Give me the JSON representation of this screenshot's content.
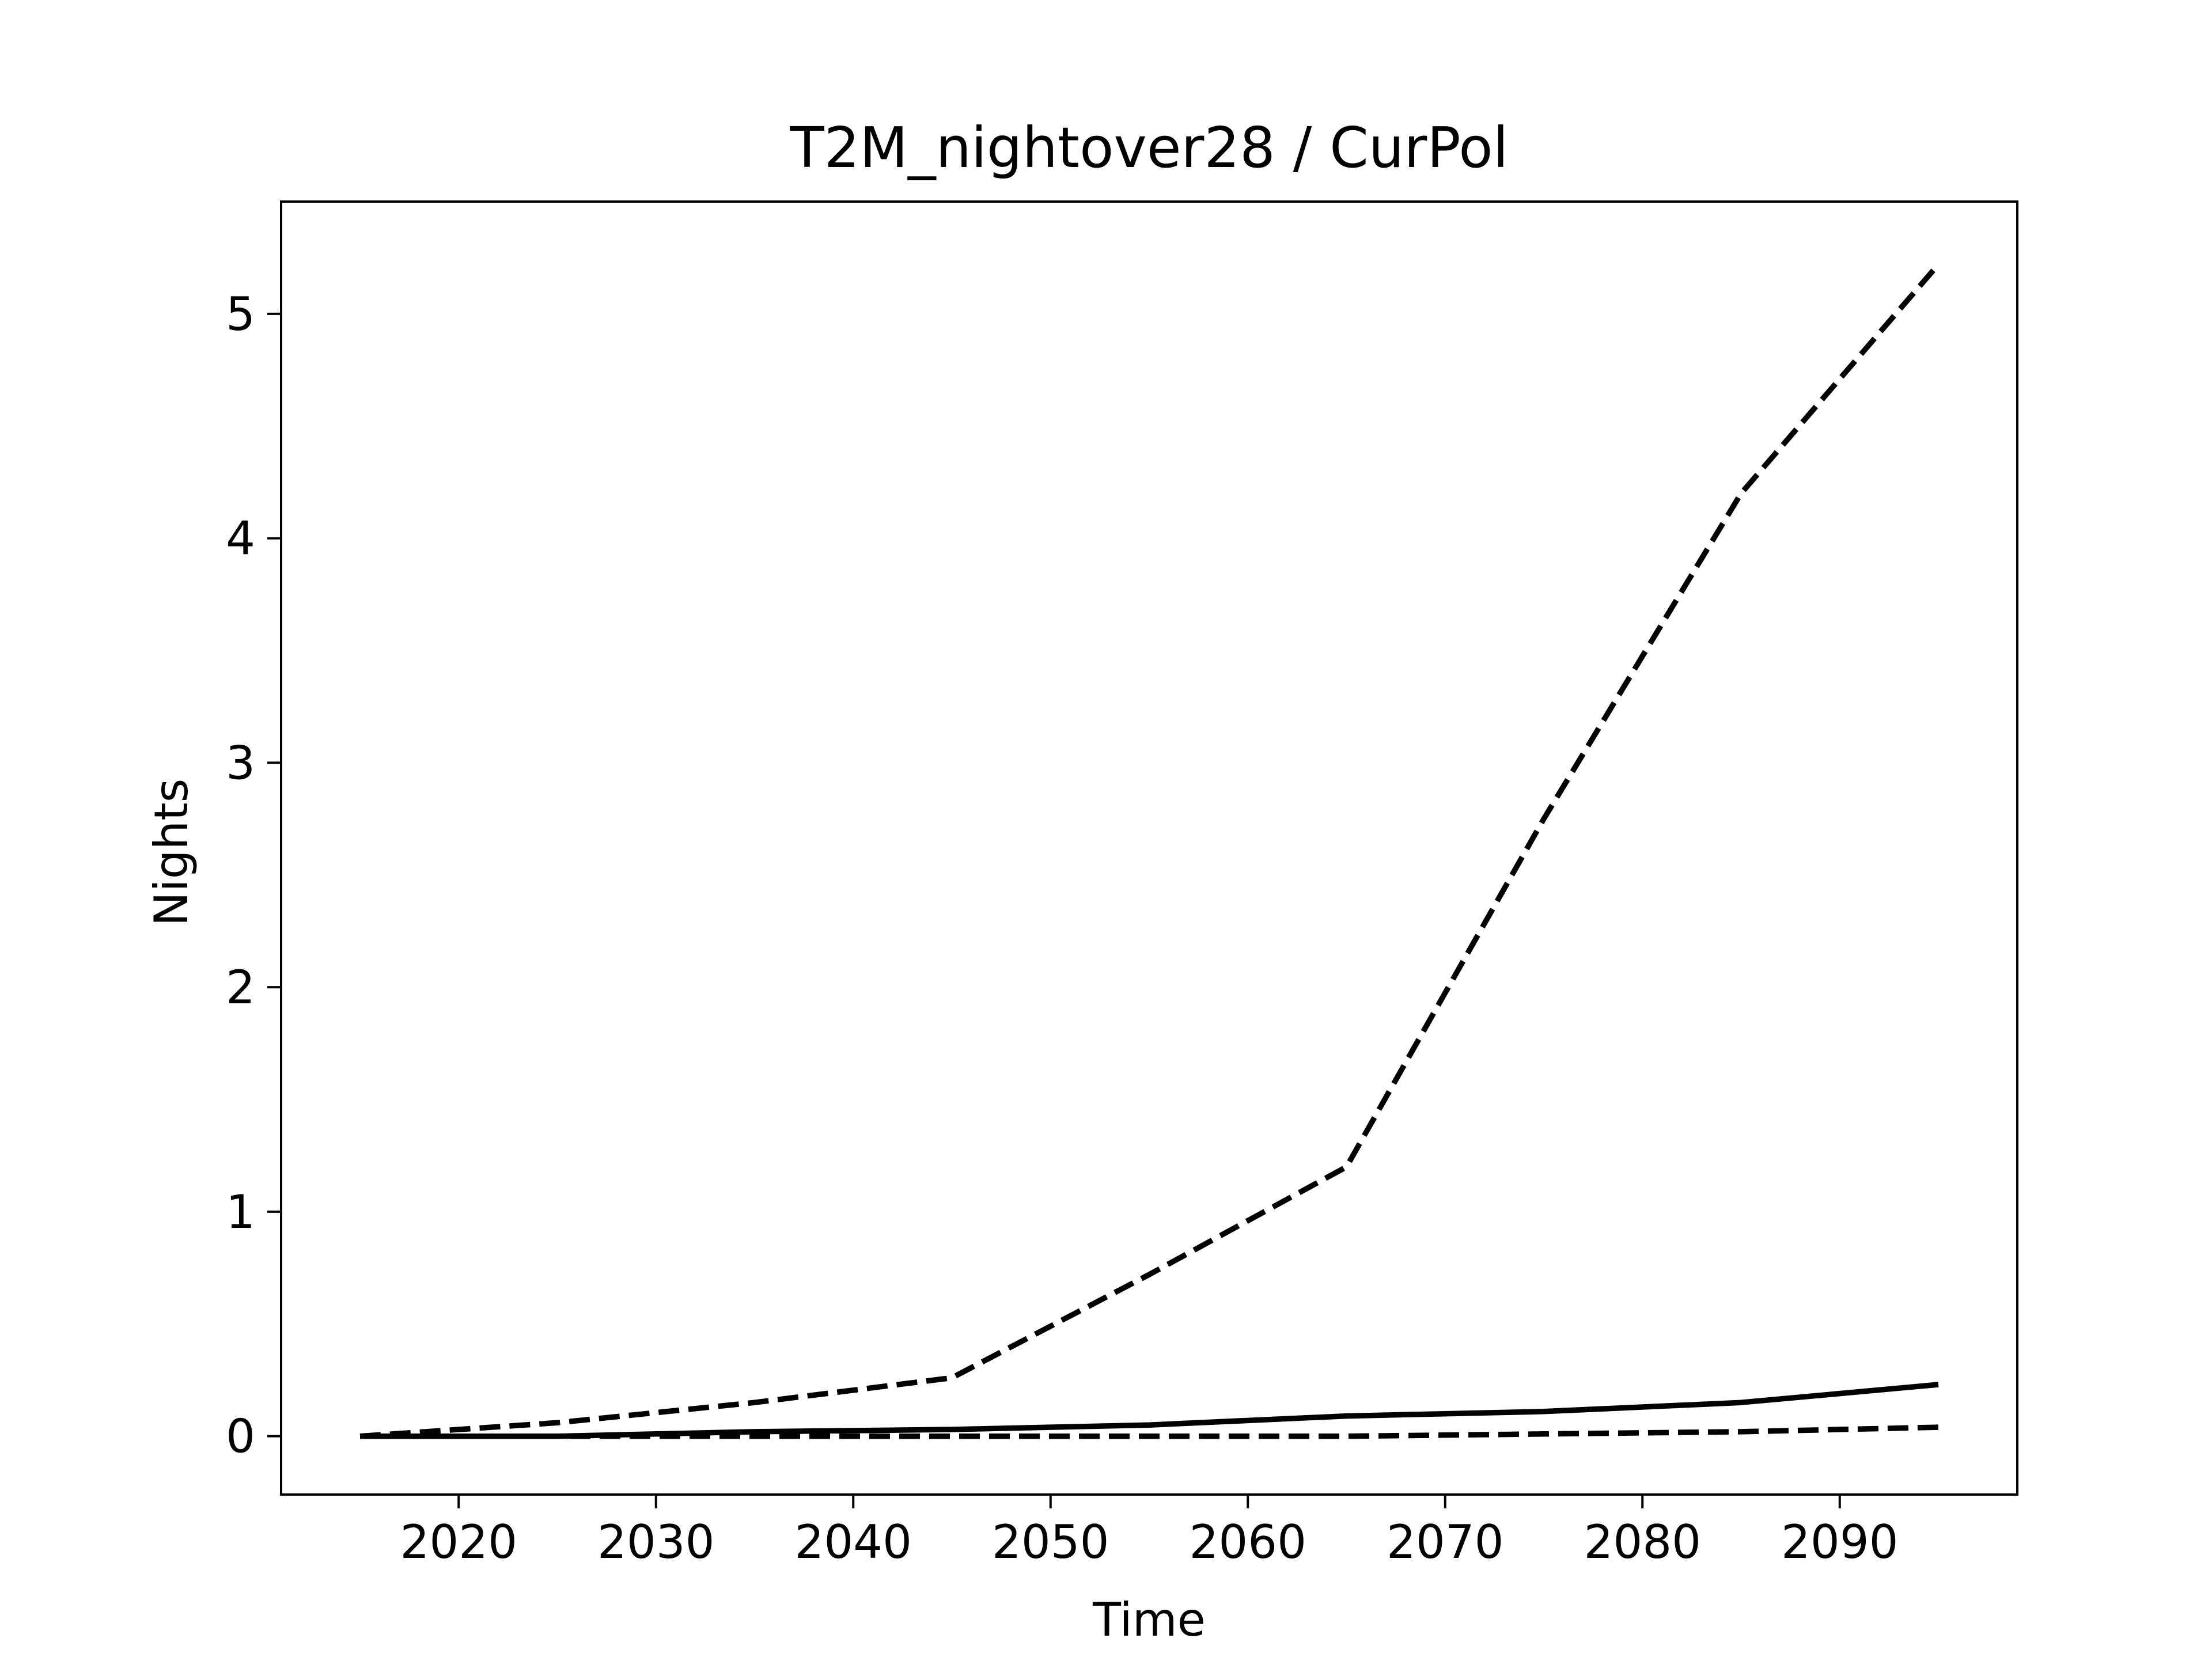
{
  "chart_data": {
    "type": "line",
    "title": "T2M_nightover28 / CurPol",
    "xlabel": "Time",
    "ylabel": "Nights",
    "xlim": [
      2011.0,
      2099.0
    ],
    "ylim": [
      -0.26,
      5.5
    ],
    "xticks": [
      2020,
      2030,
      2040,
      2050,
      2060,
      2070,
      2080,
      2090
    ],
    "yticks": [
      0,
      1,
      2,
      3,
      4,
      5
    ],
    "grid": false,
    "legend": "none",
    "x": [
      2015,
      2025,
      2035,
      2045,
      2055,
      2065,
      2075,
      2085,
      2095
    ],
    "series": [
      {
        "style": "dashed",
        "color": "#000000",
        "values": [
          0.0,
          0.06,
          0.15,
          0.26,
          0.72,
          1.2,
          2.75,
          4.2,
          5.22
        ]
      },
      {
        "style": "solid",
        "color": "#000000",
        "values": [
          0.0,
          0.0,
          0.02,
          0.03,
          0.05,
          0.09,
          0.11,
          0.15,
          0.23
        ]
      },
      {
        "style": "dashed",
        "color": "#000000",
        "values": [
          0.0,
          0.0,
          0.0,
          0.0,
          0.0,
          0.0,
          0.01,
          0.02,
          0.04
        ]
      }
    ]
  }
}
